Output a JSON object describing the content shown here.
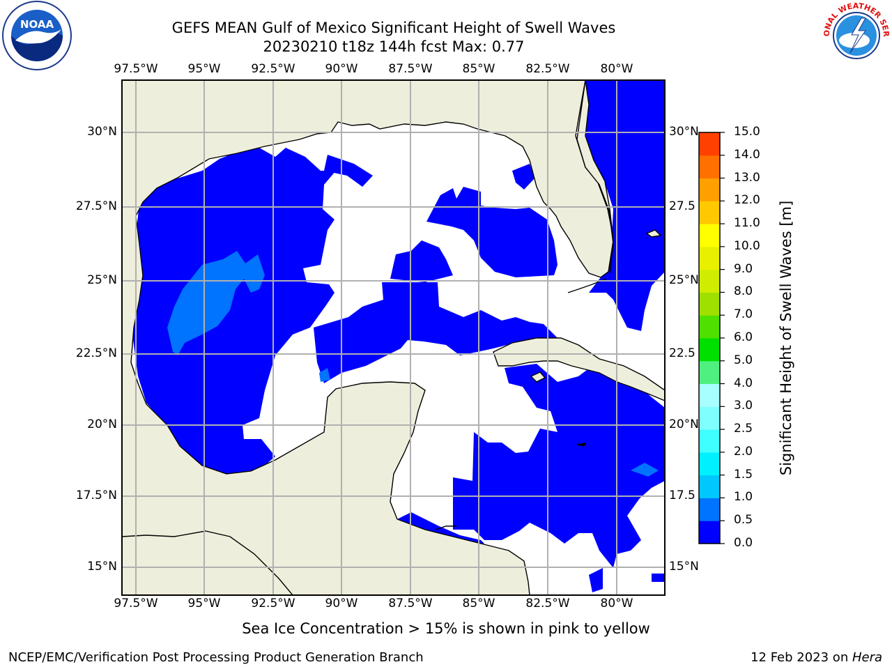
{
  "title": "GEFS MEAN Gulf of Mexico Significant Height of Swell Waves",
  "subtitle": "20230210 t18z 144h fcst   Max: 0.77",
  "lon_ticks": [
    "97.5°W",
    "95°W",
    "92.5°W",
    "90°W",
    "87.5°W",
    "85°W",
    "82.5°W",
    "80°W"
  ],
  "lat_ticks": [
    "30°N",
    "27.5°N",
    "25°N",
    "22.5°N",
    "20°N",
    "17.5°N",
    "15°N"
  ],
  "right_lat_ticks": [
    "30°N",
    "27.5",
    "25°N",
    "22.5",
    "20°N",
    "17.5",
    "15°N"
  ],
  "colorbar": {
    "label": "Significant Height of Swell Waves [m]",
    "tick_labels": [
      "0.0",
      "0.5",
      "1.0",
      "1.5",
      "2.0",
      "2.5",
      "3.0",
      "4.0",
      "5.0",
      "6.0",
      "7.0",
      "8.0",
      "9.0",
      "10.0",
      "11.0",
      "12.0",
      "13.0",
      "14.0",
      "15.0"
    ],
    "colors": [
      "#0000ff",
      "#0073ff",
      "#00c8ff",
      "#00f0ff",
      "#40ffff",
      "#80ffff",
      "#a8ffff",
      "#50f080",
      "#00e000",
      "#50e000",
      "#a0e000",
      "#d0ec00",
      "#e8f000",
      "#ffff00",
      "#ffc800",
      "#ffa000",
      "#ff7000",
      "#ff4000",
      "#ff0000"
    ]
  },
  "map": {
    "land_color": "#eeeedc",
    "ocean_low_color": "#0000ff",
    "ocean_mid_color": "#0073ff",
    "no_data_color": "#ffffff",
    "grid_color": "#b0b0b0"
  },
  "note": "Sea Ice Concentration > 15% is shown in pink to yellow",
  "footer_left": "NCEP/EMC/Verification Post Processing Product Generation Branch",
  "footer_right_date": "12 Feb 2023 on ",
  "footer_right_host": "Hera",
  "logos": {
    "left": "NOAA",
    "right": "NATIONAL WEATHER SERVICE"
  }
}
